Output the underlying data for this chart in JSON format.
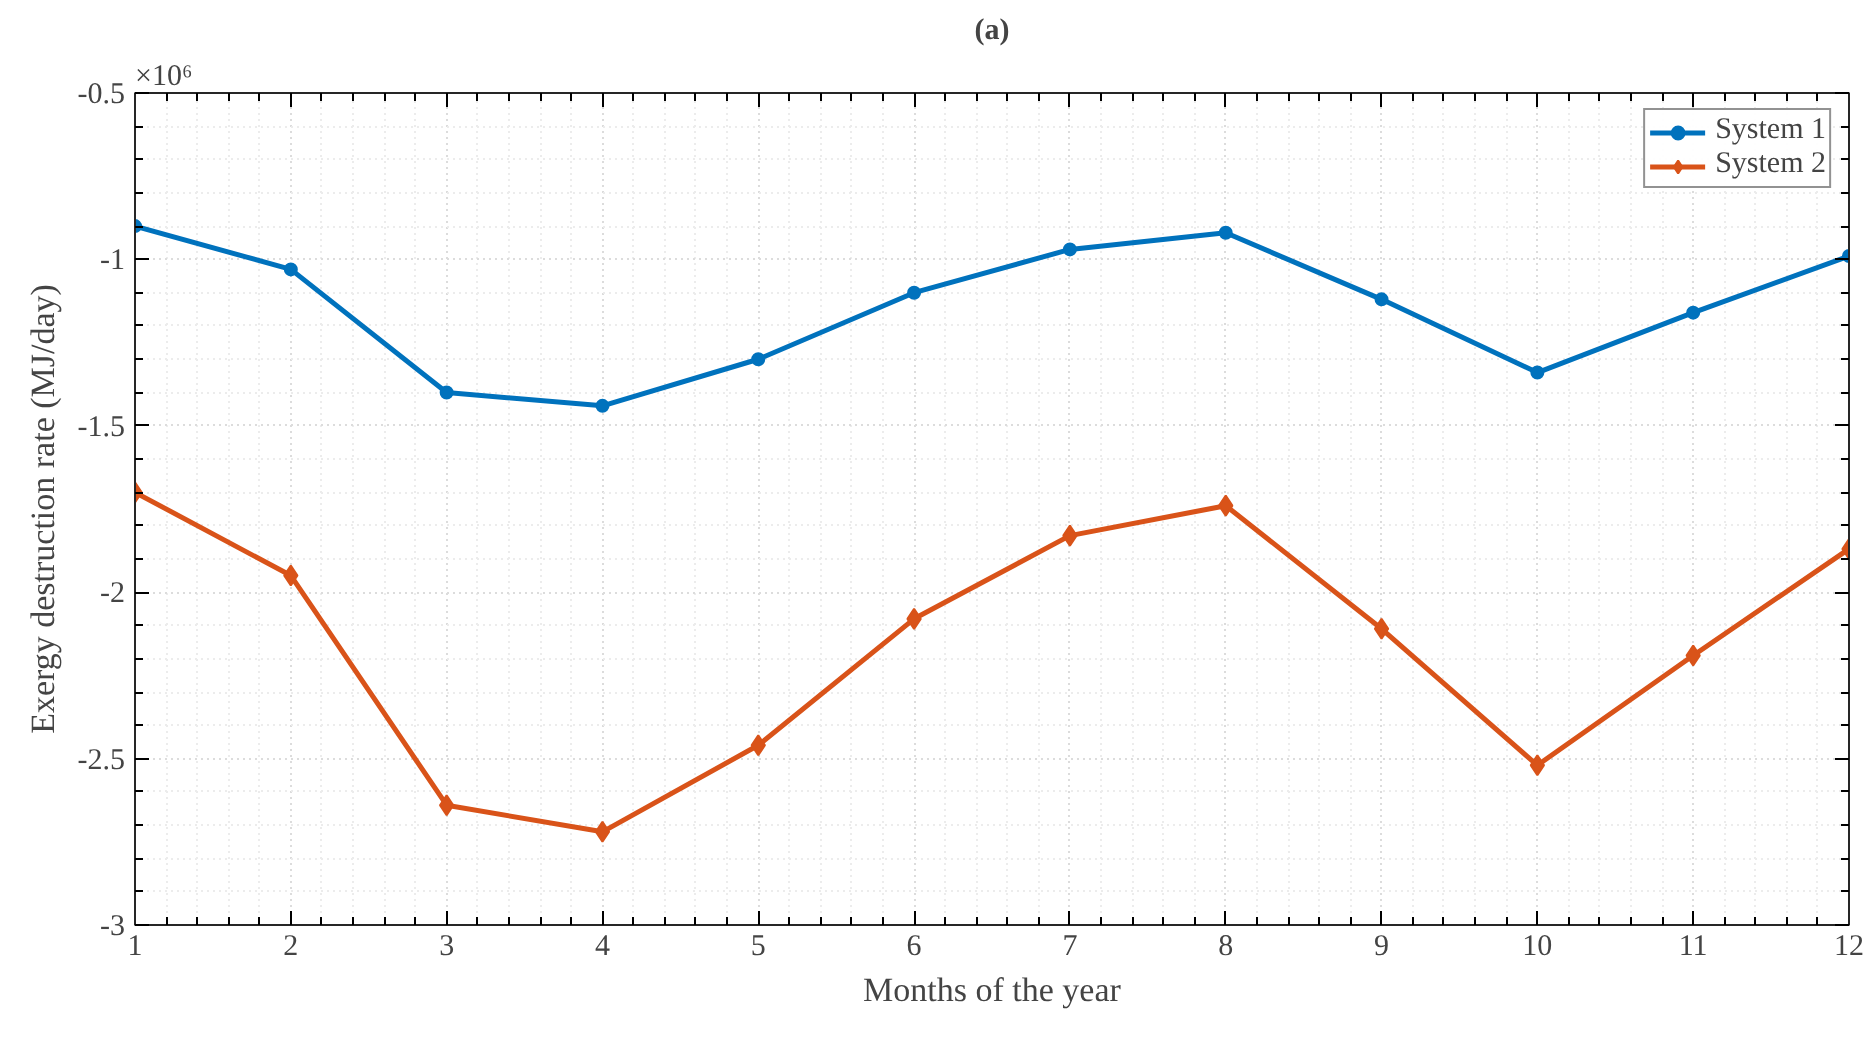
{
  "chart_data": {
    "type": "line",
    "title": "(a)",
    "xlabel": "Months of the year",
    "ylabel": "Exergy destruction rate (MJ/day)",
    "annotations": [
      "×10⁶"
    ],
    "x": [
      1,
      2,
      3,
      4,
      5,
      6,
      7,
      8,
      9,
      10,
      11,
      12
    ],
    "series": [
      {
        "name": "System 1",
        "color": "#0072bd",
        "marker": "circle",
        "values": [
          -0.9,
          -1.03,
          -1.4,
          -1.44,
          -1.3,
          -1.1,
          -0.97,
          -0.92,
          -1.12,
          -1.34,
          -1.16,
          -0.99
        ]
      },
      {
        "name": "System 2",
        "color": "#d95319",
        "marker": "diamond",
        "values": [
          -1.7,
          -1.95,
          -2.64,
          -2.72,
          -2.46,
          -2.08,
          -1.83,
          -1.74,
          -2.11,
          -2.52,
          -2.19,
          -1.87
        ]
      }
    ],
    "xlim": [
      1,
      12
    ],
    "xticks": [
      1,
      2,
      3,
      4,
      5,
      6,
      7,
      8,
      9,
      10,
      11,
      12
    ],
    "ylim": [
      -3,
      -0.5
    ],
    "yticks": [
      -3,
      -2.5,
      -2,
      -1.5,
      -1,
      -0.5
    ],
    "grid": true,
    "legend": "top right",
    "line_style": "solid"
  }
}
